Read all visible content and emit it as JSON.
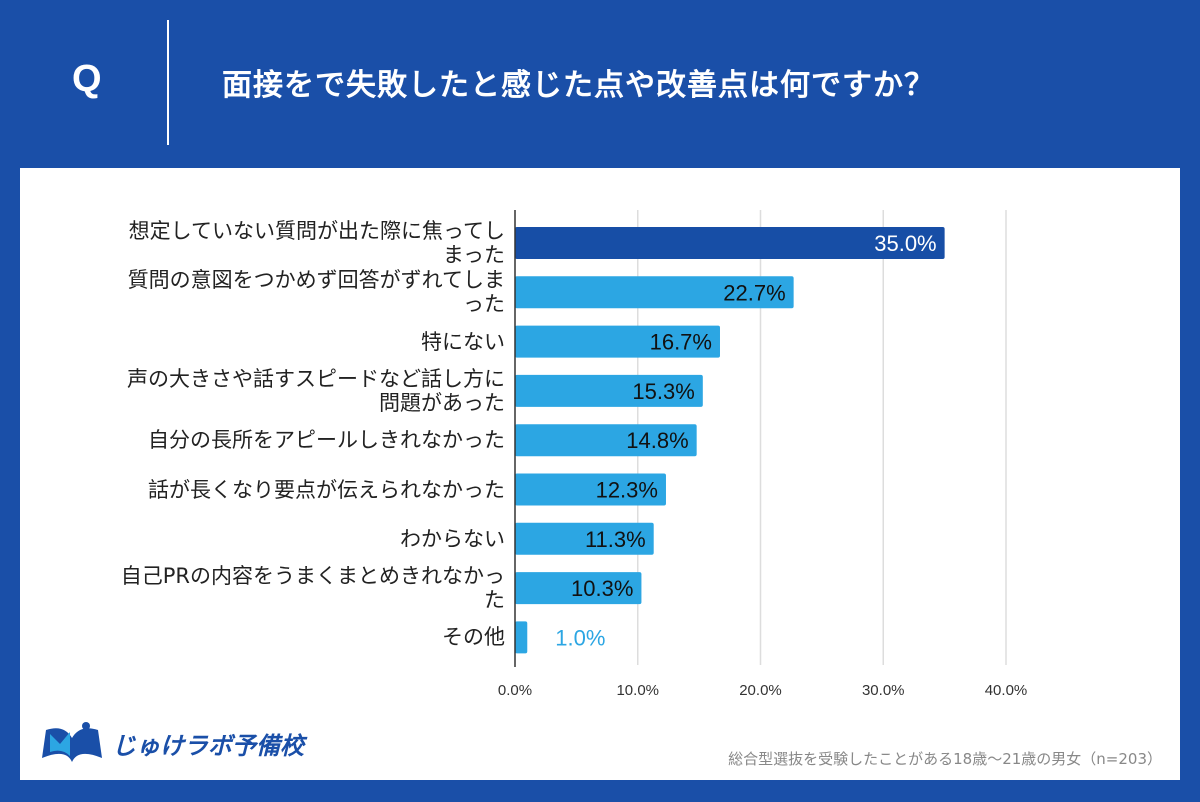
{
  "header": {
    "q_label": "Q",
    "title": "面接をで失敗したと感じた点や改善点は何ですか？"
  },
  "chart_data": {
    "type": "bar",
    "orientation": "horizontal",
    "categories": [
      "想定していない質問が出た際に焦ってしまった",
      "質問の意図をつかめず回答がずれてしまった",
      "特にない",
      "声の大きさや話すスピードなど話し方に問題があった",
      "自分の長所をアピールしきれなかった",
      "話が長くなり要点が伝えられなかった",
      "わからない",
      "自己PRの内容をうまくまとめきれなかった",
      "その他"
    ],
    "values": [
      35.0,
      22.7,
      16.7,
      15.3,
      14.8,
      12.3,
      11.3,
      10.3,
      1.0
    ],
    "data_labels": [
      "35.0%",
      "22.7%",
      "16.7%",
      "15.3%",
      "14.8%",
      "12.3%",
      "11.3%",
      "10.3%",
      "1.0%"
    ],
    "xlim": [
      0,
      40
    ],
    "x_ticks": [
      "0.0%",
      "10.0%",
      "20.0%",
      "30.0%",
      "40.0%"
    ],
    "grid": true,
    "colors": {
      "highlight": "#174ea6",
      "bar": "#2ca6e3"
    }
  },
  "footer": {
    "logo": "じゅけラボ予備校",
    "note": "総合型選抜を受験したことがある18歳～21歳の男女（n=203）"
  },
  "colors": {
    "background": "#1a4fa8"
  }
}
